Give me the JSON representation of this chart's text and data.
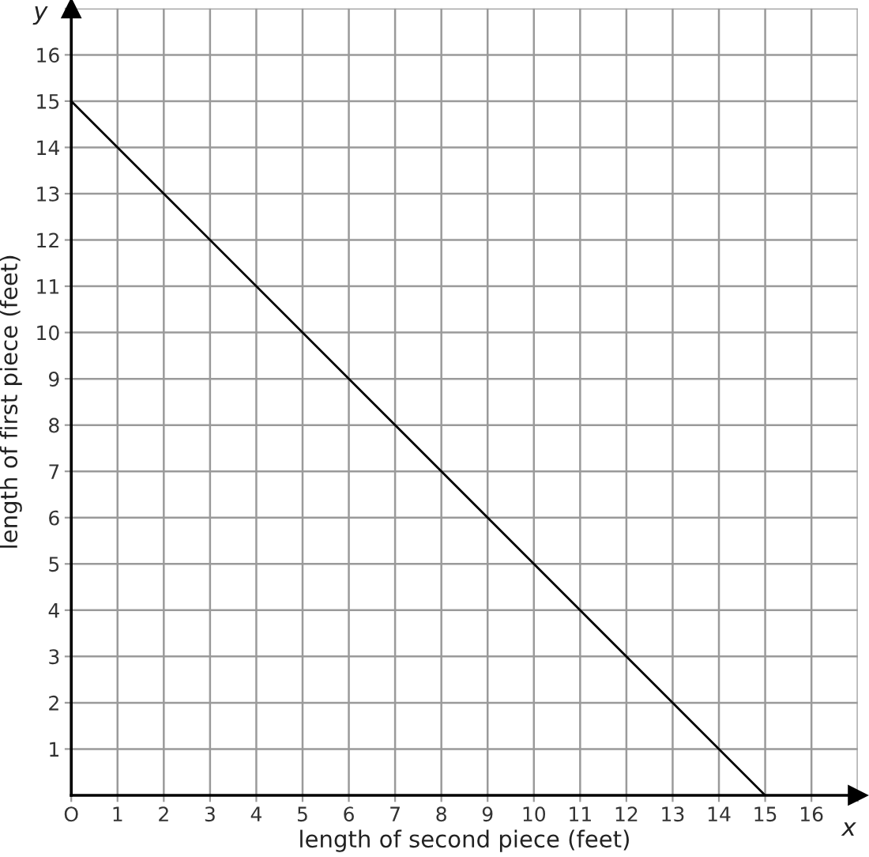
{
  "chart_data": {
    "type": "line",
    "xlabel": "length of second piece (feet)",
    "ylabel": "length of first piece (feet)",
    "annotations": [
      "x",
      "y"
    ],
    "series": [
      {
        "color": "#000000",
        "x": [
          0,
          15
        ],
        "values": [
          15,
          0
        ]
      }
    ],
    "xlim": [
      0,
      17
    ],
    "ylim": [
      0,
      17
    ],
    "xticks": [
      {
        "value": 0,
        "label": "O"
      },
      1,
      2,
      3,
      4,
      5,
      6,
      7,
      8,
      9,
      10,
      11,
      12,
      13,
      14,
      15,
      16,
      {
        "value": 17,
        "label": null
      }
    ],
    "yticks": [
      1,
      2,
      3,
      4,
      5,
      6,
      7,
      8,
      9,
      10,
      11,
      12,
      13,
      14,
      15,
      16,
      {
        "value": 17,
        "label": null
      }
    ],
    "grid": true
  }
}
